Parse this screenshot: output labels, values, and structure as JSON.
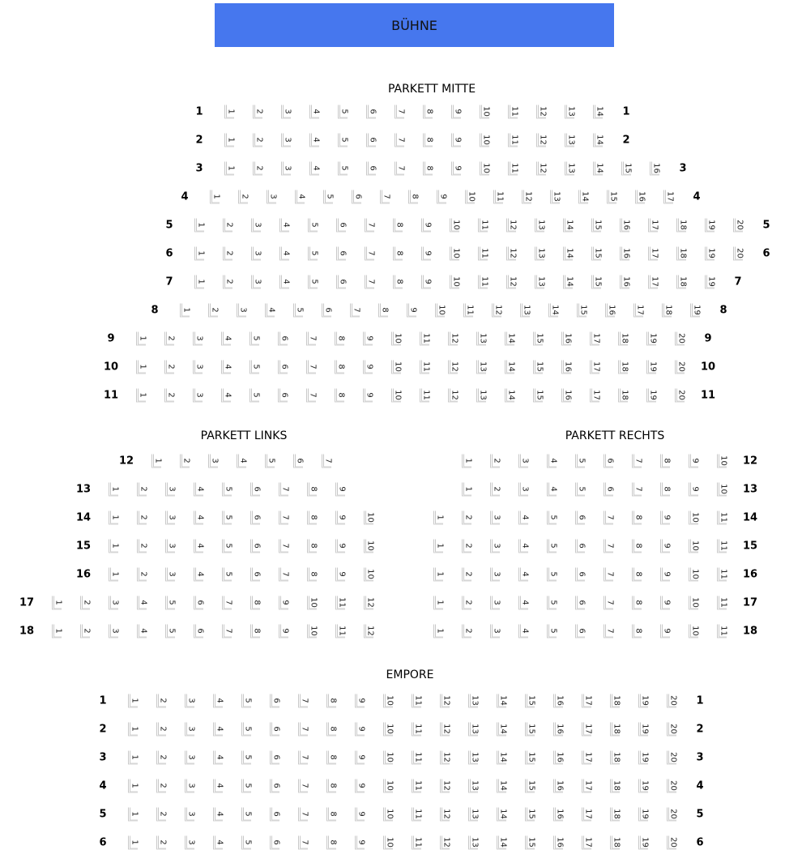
{
  "stage": {
    "label": "BÜHNE",
    "color": "#4677ee"
  },
  "sections": [
    {
      "id": "mitte",
      "title": "PARKETT MITTE",
      "rows": [
        {
          "label": "1",
          "seats": [
            1,
            2,
            3,
            4,
            5,
            6,
            7,
            8,
            9,
            10,
            11,
            12,
            13,
            14
          ]
        },
        {
          "label": "2",
          "seats": [
            1,
            2,
            3,
            4,
            5,
            6,
            7,
            8,
            9,
            10,
            11,
            12,
            13,
            14
          ]
        },
        {
          "label": "3",
          "seats": [
            1,
            2,
            3,
            4,
            5,
            6,
            7,
            8,
            9,
            10,
            11,
            12,
            13,
            14,
            15,
            16
          ]
        },
        {
          "label": "4",
          "seats": [
            1,
            2,
            3,
            4,
            5,
            6,
            7,
            8,
            9,
            10,
            11,
            12,
            13,
            14,
            15,
            16,
            17
          ]
        },
        {
          "label": "5",
          "seats": [
            1,
            2,
            3,
            4,
            5,
            6,
            7,
            8,
            9,
            10,
            11,
            12,
            13,
            14,
            15,
            16,
            17,
            18,
            19,
            20
          ]
        },
        {
          "label": "6",
          "seats": [
            1,
            2,
            3,
            4,
            5,
            6,
            7,
            8,
            9,
            10,
            11,
            12,
            13,
            14,
            15,
            16,
            17,
            18,
            19,
            20
          ]
        },
        {
          "label": "7",
          "seats": [
            1,
            2,
            3,
            4,
            5,
            6,
            7,
            8,
            9,
            10,
            11,
            12,
            13,
            14,
            15,
            16,
            17,
            18,
            19
          ]
        },
        {
          "label": "8",
          "seats": [
            1,
            2,
            3,
            4,
            5,
            6,
            7,
            8,
            9,
            10,
            11,
            12,
            13,
            14,
            15,
            16,
            17,
            18,
            19
          ]
        },
        {
          "label": "9",
          "seats": [
            1,
            2,
            3,
            4,
            5,
            6,
            7,
            8,
            9,
            10,
            11,
            12,
            13,
            14,
            15,
            16,
            17,
            18,
            19,
            20
          ]
        },
        {
          "label": "10",
          "seats": [
            1,
            2,
            3,
            4,
            5,
            6,
            7,
            8,
            9,
            10,
            11,
            12,
            13,
            14,
            15,
            16,
            17,
            18,
            19,
            20
          ]
        },
        {
          "label": "11",
          "seats": [
            1,
            2,
            3,
            4,
            5,
            6,
            7,
            8,
            9,
            10,
            11,
            12,
            13,
            14,
            15,
            16,
            17,
            18,
            19,
            20
          ]
        }
      ]
    },
    {
      "id": "links",
      "title": "PARKETT LINKS",
      "rows": [
        {
          "label": "12",
          "seats": [
            1,
            2,
            3,
            4,
            5,
            6,
            7
          ]
        },
        {
          "label": "13",
          "seats": [
            1,
            2,
            3,
            4,
            5,
            6,
            7,
            8,
            9
          ]
        },
        {
          "label": "14",
          "seats": [
            1,
            2,
            3,
            4,
            5,
            6,
            7,
            8,
            9,
            10
          ]
        },
        {
          "label": "15",
          "seats": [
            1,
            2,
            3,
            4,
            5,
            6,
            7,
            8,
            9,
            10
          ]
        },
        {
          "label": "16",
          "seats": [
            1,
            2,
            3,
            4,
            5,
            6,
            7,
            8,
            9,
            10
          ]
        },
        {
          "label": "17",
          "seats": [
            1,
            2,
            3,
            4,
            5,
            6,
            7,
            8,
            9,
            10,
            11,
            12
          ]
        },
        {
          "label": "18",
          "seats": [
            1,
            2,
            3,
            4,
            5,
            6,
            7,
            8,
            9,
            10,
            11,
            12
          ]
        }
      ]
    },
    {
      "id": "rechts",
      "title": "PARKETT RECHTS",
      "rows": [
        {
          "label": "12",
          "seats": [
            1,
            2,
            3,
            4,
            5,
            6,
            7,
            8,
            9,
            10
          ]
        },
        {
          "label": "13",
          "seats": [
            1,
            2,
            3,
            4,
            5,
            6,
            7,
            8,
            9,
            10
          ]
        },
        {
          "label": "14",
          "seats": [
            1,
            2,
            3,
            4,
            5,
            6,
            7,
            8,
            9,
            10,
            11
          ]
        },
        {
          "label": "15",
          "seats": [
            1,
            2,
            3,
            4,
            5,
            6,
            7,
            8,
            9,
            10,
            11
          ]
        },
        {
          "label": "16",
          "seats": [
            1,
            2,
            3,
            4,
            5,
            6,
            7,
            8,
            9,
            10,
            11
          ]
        },
        {
          "label": "17",
          "seats": [
            1,
            2,
            3,
            4,
            5,
            6,
            7,
            8,
            9,
            10,
            11
          ]
        },
        {
          "label": "18",
          "seats": [
            1,
            2,
            3,
            4,
            5,
            6,
            7,
            8,
            9,
            10,
            11
          ]
        }
      ]
    },
    {
      "id": "empore",
      "title": "EMPORE",
      "rows": [
        {
          "label": "1",
          "seats": [
            1,
            2,
            3,
            4,
            5,
            6,
            7,
            8,
            9,
            10,
            11,
            12,
            13,
            14,
            15,
            16,
            17,
            18,
            19,
            20
          ]
        },
        {
          "label": "2",
          "seats": [
            1,
            2,
            3,
            4,
            5,
            6,
            7,
            8,
            9,
            10,
            11,
            12,
            13,
            14,
            15,
            16,
            17,
            18,
            19,
            20
          ]
        },
        {
          "label": "3",
          "seats": [
            1,
            2,
            3,
            4,
            5,
            6,
            7,
            8,
            9,
            10,
            11,
            12,
            13,
            14,
            15,
            16,
            17,
            18,
            19,
            20
          ]
        },
        {
          "label": "4",
          "seats": [
            1,
            2,
            3,
            4,
            5,
            6,
            7,
            8,
            9,
            10,
            11,
            12,
            13,
            14,
            15,
            16,
            17,
            18,
            19,
            20
          ]
        },
        {
          "label": "5",
          "seats": [
            1,
            2,
            3,
            4,
            5,
            6,
            7,
            8,
            9,
            10,
            11,
            12,
            13,
            14,
            15,
            16,
            17,
            18,
            19,
            20
          ]
        },
        {
          "label": "6",
          "seats": [
            1,
            2,
            3,
            4,
            5,
            6,
            7,
            8,
            9,
            10,
            11,
            12,
            13,
            14,
            15,
            16,
            17,
            18,
            19,
            20
          ]
        }
      ]
    }
  ]
}
